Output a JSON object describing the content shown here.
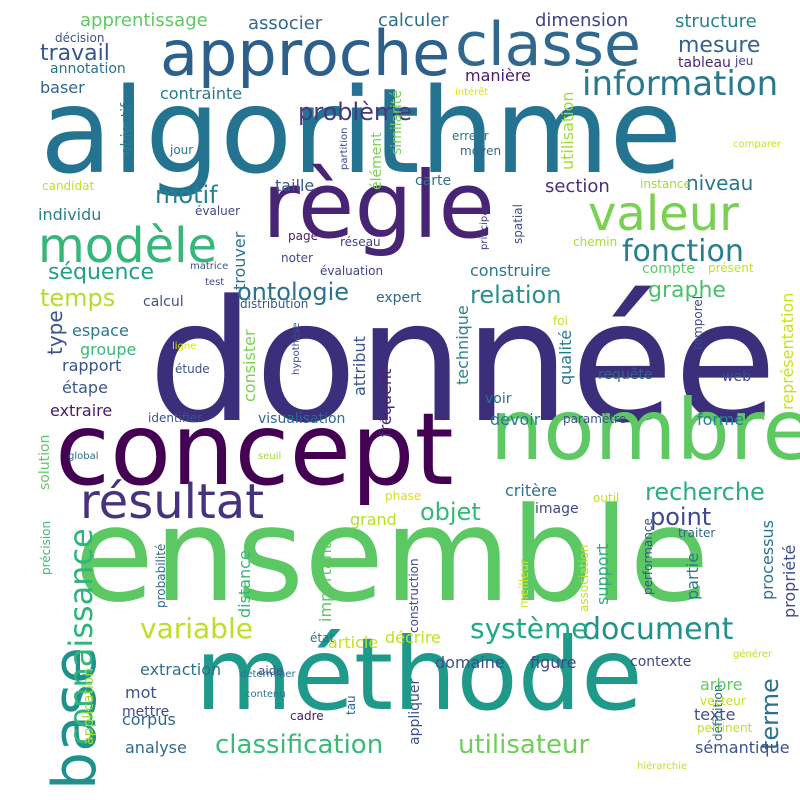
{
  "words": [
    {
      "text": "donnée",
      "color": "#3b2e7a"
    },
    {
      "text": "algorithme",
      "color": "#247390"
    },
    {
      "text": "ensemble",
      "color": "#5cc863"
    },
    {
      "text": "méthode",
      "color": "#1f9a8a"
    },
    {
      "text": "concept",
      "color": "#440154"
    },
    {
      "text": "règle",
      "color": "#482475"
    },
    {
      "text": "nombre",
      "color": "#5ec962"
    },
    {
      "text": "classe",
      "color": "#31688e"
    },
    {
      "text": "approche",
      "color": "#2c5f8a"
    },
    {
      "text": "modèle",
      "color": "#35b779"
    },
    {
      "text": "valeur",
      "color": "#7ad151"
    },
    {
      "text": "résultat",
      "color": "#46337e"
    },
    {
      "text": "base",
      "color": "#1f918d"
    },
    {
      "text": "information",
      "color": "#2a788e"
    },
    {
      "text": "fonction",
      "color": "#277f8e"
    },
    {
      "text": "connaissance",
      "color": "#2fb47c"
    },
    {
      "text": "document",
      "color": "#21918c"
    },
    {
      "text": "système",
      "color": "#22a884"
    },
    {
      "text": "variable",
      "color": "#bddf26"
    },
    {
      "text": "classification",
      "color": "#3aba76"
    },
    {
      "text": "utilisateur",
      "color": "#6ece58"
    },
    {
      "text": "motif",
      "color": "#26828e"
    },
    {
      "text": "temps",
      "color": "#b5de2b"
    },
    {
      "text": "ontologie",
      "color": "#2c728e"
    },
    {
      "text": "relation",
      "color": "#2a8f8c"
    },
    {
      "text": "recherche",
      "color": "#29af7f"
    },
    {
      "text": "point",
      "color": "#3e4a89"
    },
    {
      "text": "objet",
      "color": "#37b878"
    },
    {
      "text": "terme",
      "color": "#2d708e"
    },
    {
      "text": "problème",
      "color": "#443983"
    },
    {
      "text": "séquence",
      "color": "#1fa187"
    },
    {
      "text": "graphe",
      "color": "#4ac16d"
    },
    {
      "text": "type",
      "color": "#3b528b"
    },
    {
      "text": "travail",
      "color": "#39568c"
    },
    {
      "text": "mesure",
      "color": "#33638d"
    },
    {
      "text": "niveau",
      "color": "#2b758e"
    },
    {
      "text": "section",
      "color": "#472d7b"
    },
    {
      "text": "apprentissage",
      "color": "#5ec962"
    },
    {
      "text": "associer",
      "color": "#31688e"
    },
    {
      "text": "calculer",
      "color": "#2c728e"
    },
    {
      "text": "dimension",
      "color": "#404387"
    },
    {
      "text": "structure",
      "color": "#26828e"
    },
    {
      "text": "manière",
      "color": "#481a6c"
    },
    {
      "text": "contrainte",
      "color": "#2a788e"
    },
    {
      "text": "baser",
      "color": "#33638d"
    },
    {
      "text": "annotation",
      "color": "#2d708e"
    },
    {
      "text": "décision",
      "color": "#3b528b"
    },
    {
      "text": "tableau",
      "color": "#482878"
    },
    {
      "text": "jeu",
      "color": "#404387"
    },
    {
      "text": "objectif",
      "color": "#26828e"
    },
    {
      "text": "jour",
      "color": "#2a788e"
    },
    {
      "text": "candidat",
      "color": "#c2df23"
    },
    {
      "text": "individu",
      "color": "#26828e"
    },
    {
      "text": "taille",
      "color": "#39568c"
    },
    {
      "text": "carte",
      "color": "#2c728e"
    },
    {
      "text": "construire",
      "color": "#2a788e"
    },
    {
      "text": "élément",
      "color": "#7ad151"
    },
    {
      "text": "similarité",
      "color": "#7ad151"
    },
    {
      "text": "partition",
      "color": "#3e4a89"
    },
    {
      "text": "erreur",
      "color": "#2a788e"
    },
    {
      "text": "moyen",
      "color": "#31688e"
    },
    {
      "text": "utilisation",
      "color": "#a0da39"
    },
    {
      "text": "intérêt",
      "color": "#d8e219"
    },
    {
      "text": "comparer",
      "color": "#d0e11c"
    },
    {
      "text": "instance",
      "color": "#a0da39"
    },
    {
      "text": "évaluer",
      "color": "#3e4a89"
    },
    {
      "text": "page",
      "color": "#481a6c"
    },
    {
      "text": "réseau",
      "color": "#404387"
    },
    {
      "text": "principal",
      "color": "#453781"
    },
    {
      "text": "spatial",
      "color": "#3b528b"
    },
    {
      "text": "chemin",
      "color": "#a8db34"
    },
    {
      "text": "compte",
      "color": "#5ec962"
    },
    {
      "text": "présent",
      "color": "#c2df23"
    },
    {
      "text": "représentation",
      "color": "#c8e020"
    },
    {
      "text": "trouver",
      "color": "#2c728e"
    },
    {
      "text": "noter",
      "color": "#3e4a89"
    },
    {
      "text": "évaluation",
      "color": "#404387"
    },
    {
      "text": "matrice",
      "color": "#3b528b"
    },
    {
      "text": "test",
      "color": "#3e4a89"
    },
    {
      "text": "calcul",
      "color": "#3b528b"
    },
    {
      "text": "distribution",
      "color": "#39568c"
    },
    {
      "text": "expert",
      "color": "#31688e"
    },
    {
      "text": "temporel",
      "color": "#3e4a89"
    },
    {
      "text": "foi",
      "color": "#c2df23"
    },
    {
      "text": "espace",
      "color": "#2a788e"
    },
    {
      "text": "groupe",
      "color": "#3aba76"
    },
    {
      "text": "rapport",
      "color": "#3b528b"
    },
    {
      "text": "ligne",
      "color": "#d8e219"
    },
    {
      "text": "hypothèse",
      "color": "#3b528b"
    },
    {
      "text": "étude",
      "color": "#3b528b"
    },
    {
      "text": "étape",
      "color": "#39568c"
    },
    {
      "text": "consister",
      "color": "#7ad151"
    },
    {
      "text": "attribut",
      "color": "#39568c"
    },
    {
      "text": "fréquent",
      "color": "#482475"
    },
    {
      "text": "technique",
      "color": "#26828e"
    },
    {
      "text": "qualité",
      "color": "#2a788e"
    },
    {
      "text": "voir",
      "color": "#2c728e"
    },
    {
      "text": "requête",
      "color": "#33638d"
    },
    {
      "text": "web",
      "color": "#3e4a89"
    },
    {
      "text": "extraire",
      "color": "#481a6c"
    },
    {
      "text": "identifier",
      "color": "#3b528b"
    },
    {
      "text": "visualisation",
      "color": "#31688e"
    },
    {
      "text": "devoir",
      "color": "#2a788e"
    },
    {
      "text": "paramètre",
      "color": "#3b528b"
    },
    {
      "text": "forme",
      "color": "#26828e"
    },
    {
      "text": "solution",
      "color": "#5ec962"
    },
    {
      "text": "global",
      "color": "#31688e"
    },
    {
      "text": "seuil",
      "color": "#a0da39"
    },
    {
      "text": "critère",
      "color": "#2c728e"
    },
    {
      "text": "phase",
      "color": "#d8e219"
    },
    {
      "text": "outil",
      "color": "#c2df23"
    },
    {
      "text": "grand",
      "color": "#b5de2b"
    },
    {
      "text": "image",
      "color": "#3e4a89"
    },
    {
      "text": "précision",
      "color": "#3aba76"
    },
    {
      "text": "probabilité",
      "color": "#31688e"
    },
    {
      "text": "distance",
      "color": "#35b779"
    },
    {
      "text": "important",
      "color": "#5ec962"
    },
    {
      "text": "construction",
      "color": "#3e4a89"
    },
    {
      "text": "association",
      "color": "#c2df23"
    },
    {
      "text": "meilleur",
      "color": "#d8e219"
    },
    {
      "text": "support",
      "color": "#29af7f"
    },
    {
      "text": "partie",
      "color": "#2a788e"
    },
    {
      "text": "performance",
      "color": "#3b528b"
    },
    {
      "text": "processus",
      "color": "#2d708e"
    },
    {
      "text": "propriété",
      "color": "#3e4a89"
    },
    {
      "text": "traiter",
      "color": "#31688e"
    },
    {
      "text": "décrire",
      "color": "#c2df23"
    },
    {
      "text": "article",
      "color": "#c2df23"
    },
    {
      "text": "extraction",
      "color": "#2d708e"
    },
    {
      "text": "état",
      "color": "#2c728e"
    },
    {
      "text": "domaine",
      "color": "#3b528b"
    },
    {
      "text": "figure",
      "color": "#3e4a89"
    },
    {
      "text": "contexte",
      "color": "#3e4a89"
    },
    {
      "text": "arbre",
      "color": "#5ec962"
    },
    {
      "text": "générer",
      "color": "#c2df23"
    },
    {
      "text": "mot",
      "color": "#3b528b"
    },
    {
      "text": "mettre",
      "color": "#3e4a89"
    },
    {
      "text": "déterminer",
      "color": "#2c728e"
    },
    {
      "text": "aide",
      "color": "#3b528b"
    },
    {
      "text": "application",
      "color": "#a0da39"
    },
    {
      "text": "corpus",
      "color": "#31688e"
    },
    {
      "text": "contenu",
      "color": "#2a788e"
    },
    {
      "text": "appliquer",
      "color": "#3b528b"
    },
    {
      "text": "tau",
      "color": "#31688e"
    },
    {
      "text": "cadre",
      "color": "#481a6c"
    },
    {
      "text": "vecteur",
      "color": "#c2df23"
    },
    {
      "text": "texte",
      "color": "#3b528b"
    },
    {
      "text": "pertinent",
      "color": "#c2df23"
    },
    {
      "text": "définition",
      "color": "#2d708e"
    },
    {
      "text": "analyse",
      "color": "#31688e"
    },
    {
      "text": "sémantique",
      "color": "#3b528b"
    },
    {
      "text": "hiérarchie",
      "color": "#c2df23"
    }
  ]
}
